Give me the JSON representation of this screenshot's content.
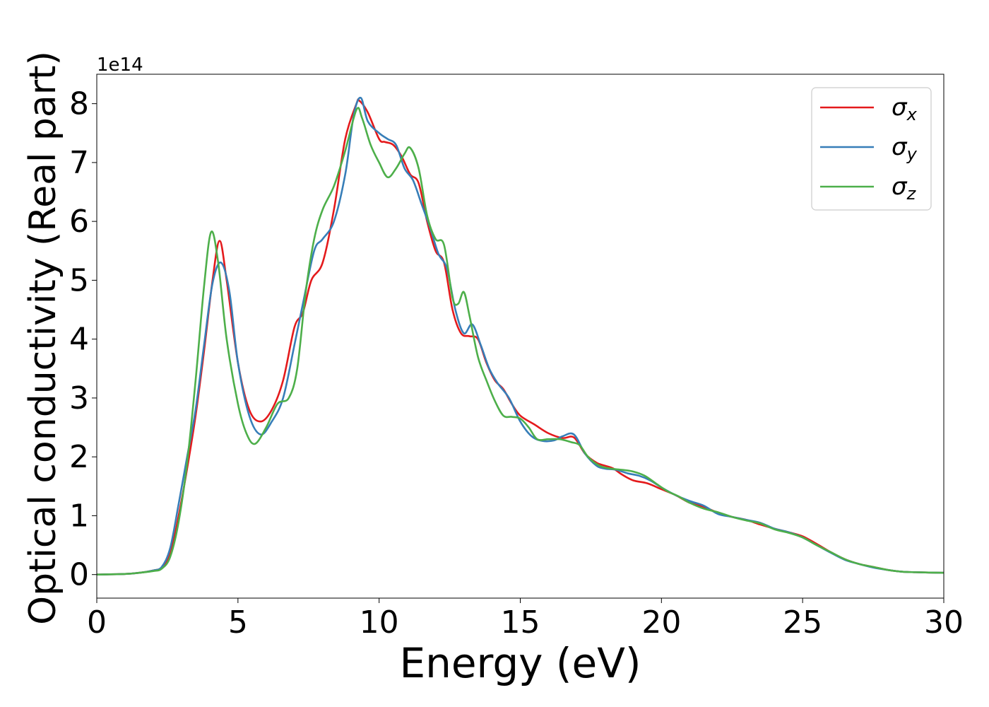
{
  "chart_data": {
    "type": "line",
    "title": "",
    "xlabel": "Energy (eV)",
    "ylabel": "Optical conductivity (Real part)",
    "y_scale_label": "1e14",
    "xlim": [
      0,
      30
    ],
    "ylim": [
      -0.4,
      8.5
    ],
    "x_ticks": [
      0,
      5,
      10,
      15,
      20,
      25,
      30
    ],
    "x_tick_labels": [
      "0",
      "5",
      "10",
      "15",
      "20",
      "25",
      "30"
    ],
    "y_ticks": [
      0,
      1,
      2,
      3,
      4,
      5,
      6,
      7,
      8
    ],
    "y_tick_labels": [
      "0",
      "1",
      "2",
      "3",
      "4",
      "5",
      "6",
      "7",
      "8"
    ],
    "grid": false,
    "legend_position": "top-right",
    "series": [
      {
        "name": "σx",
        "name_base": "σ",
        "name_sub": "x",
        "color": "#e41a1c",
        "points": [
          [
            0,
            0
          ],
          [
            1,
            0.01
          ],
          [
            1.5,
            0.03
          ],
          [
            2,
            0.07
          ],
          [
            2.3,
            0.12
          ],
          [
            2.6,
            0.35
          ],
          [
            2.9,
            1.0
          ],
          [
            3.2,
            1.8
          ],
          [
            3.5,
            2.7
          ],
          [
            3.8,
            3.8
          ],
          [
            4.1,
            5.0
          ],
          [
            4.35,
            5.67
          ],
          [
            4.6,
            5.0
          ],
          [
            5.0,
            3.6
          ],
          [
            5.4,
            2.8
          ],
          [
            5.8,
            2.6
          ],
          [
            6.2,
            2.8
          ],
          [
            6.6,
            3.3
          ],
          [
            7.0,
            4.2
          ],
          [
            7.3,
            4.45
          ],
          [
            7.6,
            5.0
          ],
          [
            8.0,
            5.3
          ],
          [
            8.4,
            6.2
          ],
          [
            8.8,
            7.4
          ],
          [
            9.2,
            8.0
          ],
          [
            9.3,
            8.05
          ],
          [
            9.6,
            7.85
          ],
          [
            10.0,
            7.4
          ],
          [
            10.2,
            7.35
          ],
          [
            10.5,
            7.3
          ],
          [
            10.8,
            7.1
          ],
          [
            11.1,
            6.8
          ],
          [
            11.4,
            6.65
          ],
          [
            11.7,
            6.0
          ],
          [
            12.0,
            5.5
          ],
          [
            12.3,
            5.3
          ],
          [
            12.6,
            4.5
          ],
          [
            12.9,
            4.1
          ],
          [
            13.2,
            4.05
          ],
          [
            13.5,
            4.0
          ],
          [
            13.8,
            3.6
          ],
          [
            14.1,
            3.3
          ],
          [
            14.4,
            3.15
          ],
          [
            14.7,
            2.9
          ],
          [
            15.0,
            2.7
          ],
          [
            15.5,
            2.55
          ],
          [
            16.0,
            2.4
          ],
          [
            16.5,
            2.32
          ],
          [
            16.9,
            2.33
          ],
          [
            17.3,
            2.05
          ],
          [
            17.7,
            1.9
          ],
          [
            18.0,
            1.85
          ],
          [
            18.3,
            1.8
          ],
          [
            18.6,
            1.7
          ],
          [
            19.0,
            1.6
          ],
          [
            19.5,
            1.55
          ],
          [
            20.0,
            1.45
          ],
          [
            20.5,
            1.35
          ],
          [
            21.0,
            1.22
          ],
          [
            21.5,
            1.15
          ],
          [
            22.0,
            1.05
          ],
          [
            22.5,
            0.98
          ],
          [
            23.0,
            0.93
          ],
          [
            23.5,
            0.85
          ],
          [
            24.0,
            0.78
          ],
          [
            24.5,
            0.72
          ],
          [
            25.0,
            0.65
          ],
          [
            25.5,
            0.52
          ],
          [
            26.0,
            0.38
          ],
          [
            26.5,
            0.26
          ],
          [
            27.0,
            0.18
          ],
          [
            27.5,
            0.13
          ],
          [
            28.0,
            0.08
          ],
          [
            28.5,
            0.05
          ],
          [
            29.0,
            0.04
          ],
          [
            30.0,
            0.03
          ]
        ]
      },
      {
        "name": "σy",
        "name_base": "σ",
        "name_sub": "y",
        "color": "#377eb8",
        "points": [
          [
            0,
            0
          ],
          [
            1,
            0.01
          ],
          [
            1.5,
            0.03
          ],
          [
            2,
            0.07
          ],
          [
            2.3,
            0.13
          ],
          [
            2.6,
            0.45
          ],
          [
            2.9,
            1.2
          ],
          [
            3.2,
            2.0
          ],
          [
            3.5,
            2.8
          ],
          [
            3.8,
            3.9
          ],
          [
            4.1,
            4.95
          ],
          [
            4.4,
            5.3
          ],
          [
            4.7,
            4.8
          ],
          [
            5.0,
            3.6
          ],
          [
            5.4,
            2.7
          ],
          [
            5.8,
            2.38
          ],
          [
            6.2,
            2.6
          ],
          [
            6.6,
            3.0
          ],
          [
            7.0,
            3.9
          ],
          [
            7.3,
            4.6
          ],
          [
            7.7,
            5.5
          ],
          [
            8.0,
            5.7
          ],
          [
            8.4,
            6.0
          ],
          [
            8.8,
            6.8
          ],
          [
            9.1,
            7.8
          ],
          [
            9.35,
            8.1
          ],
          [
            9.6,
            7.7
          ],
          [
            10.0,
            7.5
          ],
          [
            10.3,
            7.4
          ],
          [
            10.6,
            7.3
          ],
          [
            10.9,
            6.9
          ],
          [
            11.2,
            6.7
          ],
          [
            11.5,
            6.3
          ],
          [
            11.8,
            5.9
          ],
          [
            12.1,
            5.45
          ],
          [
            12.4,
            5.2
          ],
          [
            12.7,
            4.5
          ],
          [
            13.0,
            4.1
          ],
          [
            13.3,
            4.25
          ],
          [
            13.6,
            3.9
          ],
          [
            13.9,
            3.5
          ],
          [
            14.2,
            3.25
          ],
          [
            14.6,
            3.0
          ],
          [
            15.0,
            2.6
          ],
          [
            15.4,
            2.35
          ],
          [
            15.8,
            2.27
          ],
          [
            16.2,
            2.28
          ],
          [
            16.5,
            2.35
          ],
          [
            16.9,
            2.38
          ],
          [
            17.3,
            2.05
          ],
          [
            17.7,
            1.85
          ],
          [
            18.0,
            1.8
          ],
          [
            18.4,
            1.78
          ],
          [
            18.8,
            1.72
          ],
          [
            19.2,
            1.68
          ],
          [
            19.6,
            1.6
          ],
          [
            20.0,
            1.48
          ],
          [
            20.5,
            1.35
          ],
          [
            21.0,
            1.25
          ],
          [
            21.5,
            1.17
          ],
          [
            22.0,
            1.03
          ],
          [
            22.5,
            0.98
          ],
          [
            23.0,
            0.93
          ],
          [
            23.5,
            0.88
          ],
          [
            24.0,
            0.78
          ],
          [
            24.5,
            0.72
          ],
          [
            25.0,
            0.63
          ],
          [
            25.5,
            0.5
          ],
          [
            26.0,
            0.37
          ],
          [
            26.5,
            0.25
          ],
          [
            27.0,
            0.18
          ],
          [
            27.5,
            0.12
          ],
          [
            28.0,
            0.08
          ],
          [
            28.5,
            0.05
          ],
          [
            29.0,
            0.04
          ],
          [
            30.0,
            0.03
          ]
        ]
      },
      {
        "name": "σz",
        "name_base": "σ",
        "name_sub": "z",
        "color": "#4daf4a",
        "points": [
          [
            0,
            0
          ],
          [
            1,
            0.01
          ],
          [
            1.5,
            0.03
          ],
          [
            2,
            0.06
          ],
          [
            2.3,
            0.1
          ],
          [
            2.6,
            0.3
          ],
          [
            2.9,
            0.9
          ],
          [
            3.2,
            1.9
          ],
          [
            3.5,
            3.3
          ],
          [
            3.8,
            4.9
          ],
          [
            4.05,
            5.82
          ],
          [
            4.3,
            5.3
          ],
          [
            4.6,
            4.0
          ],
          [
            5.0,
            2.9
          ],
          [
            5.3,
            2.4
          ],
          [
            5.6,
            2.22
          ],
          [
            6.0,
            2.5
          ],
          [
            6.4,
            2.9
          ],
          [
            6.8,
            3.0
          ],
          [
            7.1,
            3.5
          ],
          [
            7.4,
            4.8
          ],
          [
            7.7,
            5.7
          ],
          [
            8.0,
            6.2
          ],
          [
            8.4,
            6.6
          ],
          [
            8.8,
            7.2
          ],
          [
            9.2,
            7.9
          ],
          [
            9.4,
            7.75
          ],
          [
            9.7,
            7.3
          ],
          [
            10.0,
            7.0
          ],
          [
            10.3,
            6.75
          ],
          [
            10.6,
            6.9
          ],
          [
            10.9,
            7.15
          ],
          [
            11.1,
            7.25
          ],
          [
            11.4,
            6.9
          ],
          [
            11.7,
            6.1
          ],
          [
            12.0,
            5.7
          ],
          [
            12.3,
            5.6
          ],
          [
            12.6,
            4.7
          ],
          [
            12.8,
            4.6
          ],
          [
            13.0,
            4.8
          ],
          [
            13.2,
            4.4
          ],
          [
            13.5,
            3.7
          ],
          [
            13.8,
            3.3
          ],
          [
            14.1,
            2.95
          ],
          [
            14.4,
            2.7
          ],
          [
            14.7,
            2.68
          ],
          [
            15.0,
            2.65
          ],
          [
            15.3,
            2.5
          ],
          [
            15.6,
            2.3
          ],
          [
            16.0,
            2.3
          ],
          [
            16.4,
            2.3
          ],
          [
            16.8,
            2.25
          ],
          [
            17.1,
            2.2
          ],
          [
            17.4,
            2.0
          ],
          [
            17.8,
            1.85
          ],
          [
            18.2,
            1.8
          ],
          [
            18.6,
            1.78
          ],
          [
            19.0,
            1.75
          ],
          [
            19.4,
            1.68
          ],
          [
            19.8,
            1.55
          ],
          [
            20.2,
            1.42
          ],
          [
            20.6,
            1.33
          ],
          [
            21.0,
            1.22
          ],
          [
            21.5,
            1.12
          ],
          [
            22.0,
            1.06
          ],
          [
            22.5,
            0.98
          ],
          [
            23.0,
            0.92
          ],
          [
            23.5,
            0.87
          ],
          [
            24.0,
            0.77
          ],
          [
            24.5,
            0.71
          ],
          [
            25.0,
            0.63
          ],
          [
            25.5,
            0.5
          ],
          [
            26.0,
            0.38
          ],
          [
            26.5,
            0.26
          ],
          [
            27.0,
            0.18
          ],
          [
            27.5,
            0.13
          ],
          [
            28.0,
            0.08
          ],
          [
            28.5,
            0.05
          ],
          [
            29.0,
            0.04
          ],
          [
            30.0,
            0.03
          ]
        ]
      }
    ]
  }
}
